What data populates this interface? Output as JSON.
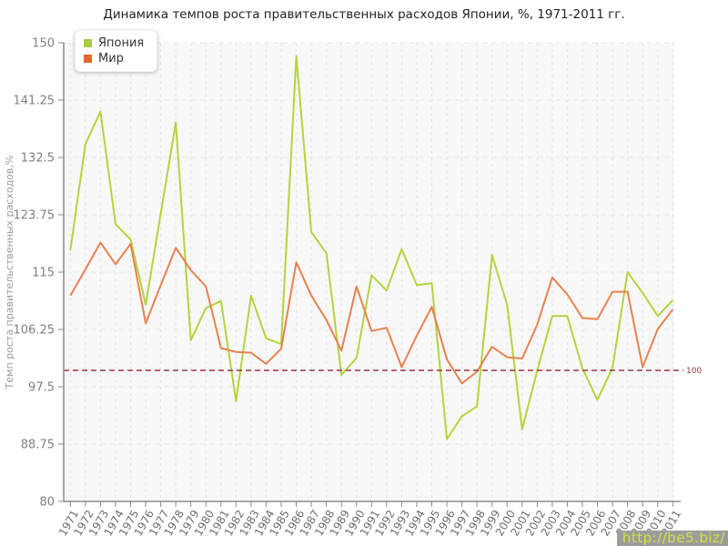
{
  "title": "Динамика темпов роста правительственных расходов Японии, %, 1971-2011 гг.",
  "watermark": "http://be5.biz/",
  "legend": {
    "items": [
      {
        "label": "Япония",
        "color": "#a6ce39"
      },
      {
        "label": "Мир",
        "color": "#e8622d"
      }
    ]
  },
  "chart_data": {
    "type": "line",
    "title": "Динамика темпов роста правительственных расходов Японии, %, 1971-2011 гг.",
    "ylabel": "Темп роста правительственных расходов,%",
    "xlabel": "",
    "ylim": [
      80,
      150
    ],
    "yticks": [
      80,
      88.75,
      97.5,
      106.25,
      115,
      123.75,
      132.5,
      141.25,
      150
    ],
    "grid": true,
    "legend_position": "top-left",
    "reference_line": {
      "value": 100,
      "label": "100",
      "color": "#9b3342",
      "style": "dashed"
    },
    "x": [
      1971,
      1972,
      1973,
      1974,
      1975,
      1976,
      1977,
      1978,
      1979,
      1980,
      1981,
      1982,
      1983,
      1984,
      1985,
      1986,
      1987,
      1988,
      1989,
      1990,
      1991,
      1992,
      1993,
      1994,
      1995,
      1996,
      1997,
      1998,
      1999,
      2000,
      2001,
      2002,
      2003,
      2004,
      2005,
      2006,
      2007,
      2008,
      2009,
      2010,
      2011
    ],
    "series": [
      {
        "name": "Япония",
        "color": "#b3d43c",
        "values": [
          118.3,
          134.5,
          139.5,
          122.3,
          120.0,
          110.0,
          123.9,
          137.8,
          104.6,
          109.5,
          110.6,
          95.3,
          111.4,
          104.9,
          104.0,
          148.0,
          121.1,
          117.9,
          99.3,
          101.9,
          114.5,
          112.2,
          118.5,
          113.0,
          113.3,
          89.5,
          93.0,
          94.5,
          117.6,
          110.0,
          91.0,
          100.0,
          108.3,
          108.3,
          100.3,
          95.5,
          100.4,
          115.0,
          111.8,
          108.3,
          110.7
        ]
      },
      {
        "name": "Мир",
        "color": "#e8814f",
        "values": [
          111.4,
          115.4,
          119.5,
          116.2,
          119.3,
          107.2,
          113.0,
          118.7,
          115.3,
          112.8,
          103.4,
          102.8,
          102.7,
          101.0,
          103.3,
          116.5,
          111.4,
          107.7,
          103.0,
          112.8,
          106.0,
          106.5,
          100.5,
          105.3,
          109.7,
          101.7,
          98.0,
          99.8,
          103.6,
          102.0,
          101.8,
          107.0,
          114.2,
          111.6,
          108.0,
          107.8,
          112.0,
          112.0,
          100.5,
          106.3,
          109.3
        ]
      }
    ]
  }
}
